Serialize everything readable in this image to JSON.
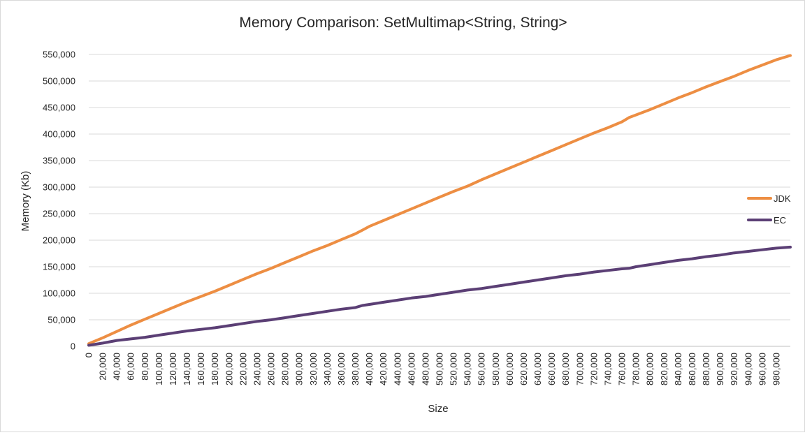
{
  "chart_data": {
    "type": "line",
    "title": "Memory Comparison: SetMultimap<String, String>",
    "xlabel": "Size",
    "ylabel": "Memory (Kb)",
    "xlim": [
      0,
      1000000
    ],
    "ylim": [
      0,
      550000
    ],
    "grid": "horizontal",
    "legend_position": "right",
    "x_tick_labels": [
      "0",
      "20,000",
      "40,000",
      "60,000",
      "80,000",
      "100,000",
      "120,000",
      "140,000",
      "160,000",
      "180,000",
      "200,000",
      "220,000",
      "240,000",
      "260,000",
      "280,000",
      "300,000",
      "320,000",
      "340,000",
      "360,000",
      "380,000",
      "400,000",
      "420,000",
      "440,000",
      "460,000",
      "480,000",
      "500,000",
      "520,000",
      "540,000",
      "560,000",
      "580,000",
      "600,000",
      "620,000",
      "640,000",
      "660,000",
      "680,000",
      "700,000",
      "720,000",
      "740,000",
      "760,000",
      "780,000",
      "800,000",
      "820,000",
      "840,000",
      "860,000",
      "880,000",
      "900,000",
      "920,000",
      "940,000",
      "960,000",
      "980,000"
    ],
    "y_tick_labels": [
      "0",
      "50,000",
      "100,000",
      "150,000",
      "200,000",
      "250,000",
      "300,000",
      "350,000",
      "400,000",
      "450,000",
      "500,000",
      "550,000"
    ],
    "y_ticks": [
      0,
      50000,
      100000,
      150000,
      200000,
      250000,
      300000,
      350000,
      400000,
      450000,
      500000,
      550000
    ],
    "x": [
      0,
      20000,
      40000,
      60000,
      80000,
      100000,
      120000,
      140000,
      160000,
      180000,
      200000,
      220000,
      240000,
      260000,
      280000,
      300000,
      320000,
      340000,
      360000,
      380000,
      390000,
      400000,
      420000,
      440000,
      460000,
      480000,
      500000,
      520000,
      540000,
      560000,
      580000,
      600000,
      620000,
      640000,
      660000,
      680000,
      700000,
      720000,
      740000,
      760000,
      770000,
      780000,
      800000,
      820000,
      840000,
      860000,
      880000,
      900000,
      920000,
      940000,
      960000,
      980000,
      1000000
    ],
    "series": [
      {
        "name": "JDK",
        "color": "#ED8E43",
        "values": [
          5000,
          16000,
          28000,
          40000,
          51000,
          62000,
          73000,
          84000,
          94000,
          104000,
          115000,
          126000,
          137000,
          147000,
          158000,
          169000,
          180000,
          190000,
          201000,
          212000,
          219000,
          226000,
          237000,
          248000,
          259000,
          270000,
          281000,
          292000,
          302000,
          314000,
          325000,
          336000,
          347000,
          358000,
          369000,
          380000,
          391000,
          402000,
          412000,
          423000,
          431000,
          436000,
          446000,
          457000,
          468000,
          478000,
          489000,
          499000,
          509000,
          520000,
          530000,
          540000,
          548000
        ]
      },
      {
        "name": "EC",
        "color": "#5B3F75",
        "values": [
          2000,
          6000,
          11000,
          14000,
          17000,
          21000,
          25000,
          29000,
          32000,
          35000,
          39000,
          43000,
          47000,
          50000,
          54000,
          58000,
          62000,
          66000,
          70000,
          73000,
          77000,
          79000,
          83000,
          87000,
          91000,
          94000,
          98000,
          102000,
          106000,
          109000,
          113000,
          117000,
          121000,
          125000,
          129000,
          133000,
          136000,
          140000,
          143000,
          146000,
          147000,
          150000,
          154000,
          158000,
          162000,
          165000,
          169000,
          172000,
          176000,
          179000,
          182000,
          185000,
          187000
        ]
      }
    ]
  }
}
